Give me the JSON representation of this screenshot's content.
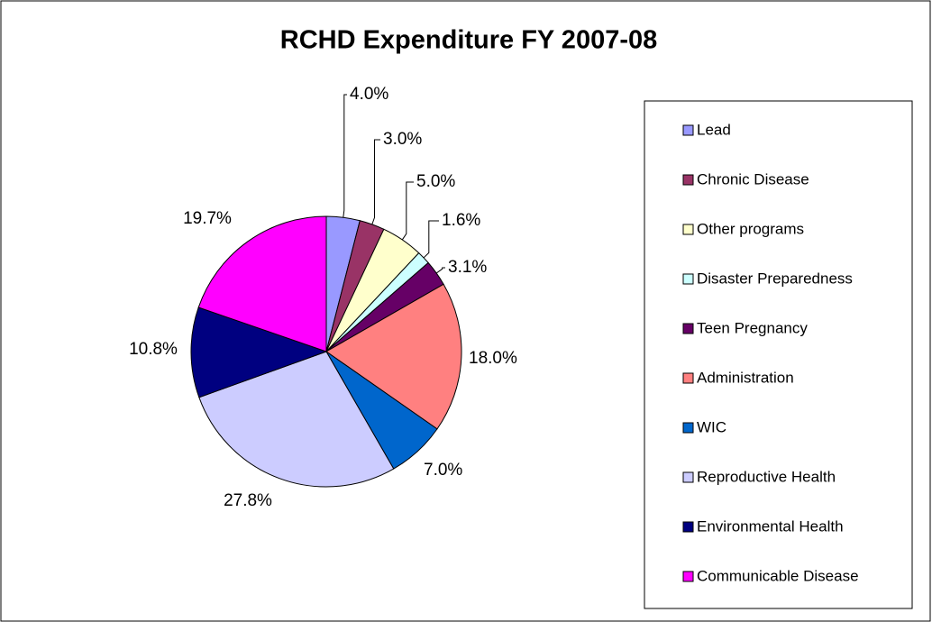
{
  "chart_data": {
    "type": "pie",
    "title": "RCHD Expenditure FY 2007-08",
    "categories": [
      "Lead",
      "Chronic Disease",
      "Other programs",
      "Disaster Preparedness",
      "Teen Pregnancy",
      "Administration",
      "WIC",
      "Reproductive Health",
      "Environmental Health",
      "Communicable Disease"
    ],
    "values": [
      4.0,
      3.0,
      5.0,
      1.6,
      3.1,
      18.0,
      7.0,
      27.8,
      10.8,
      19.7
    ],
    "value_labels": [
      "4.0%",
      "3.0%",
      "5.0%",
      "1.6%",
      "3.1%",
      "18.0%",
      "7.0%",
      "27.8%",
      "10.8%",
      "19.7%"
    ],
    "colors": [
      "#9999ff",
      "#993366",
      "#ffffcc",
      "#ccffff",
      "#660066",
      "#ff8080",
      "#0066cc",
      "#ccccff",
      "#000080",
      "#ff00ff"
    ],
    "legend": "right"
  }
}
